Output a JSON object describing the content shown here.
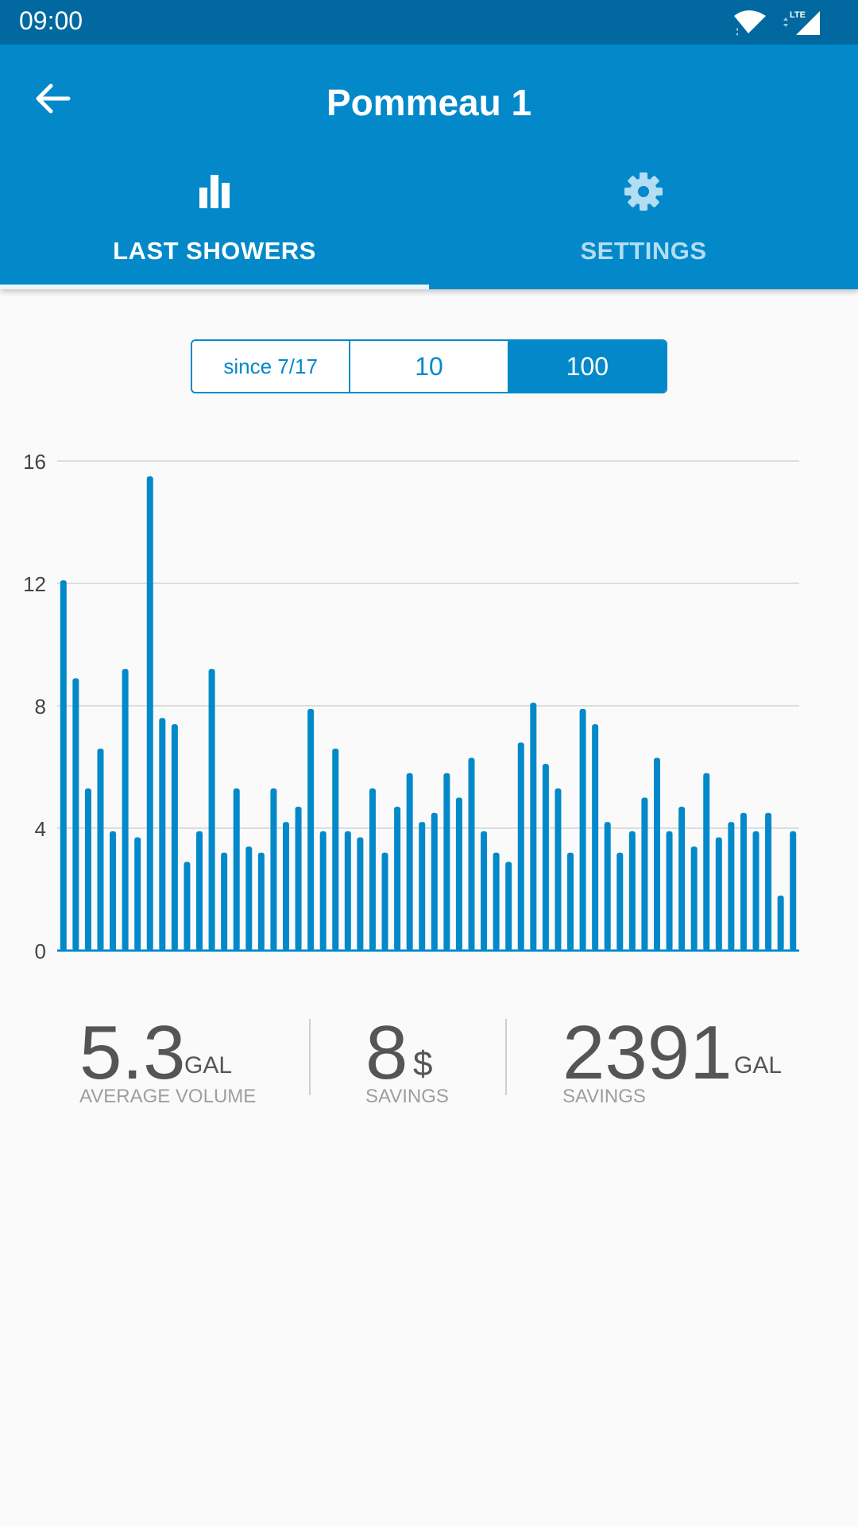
{
  "status_bar": {
    "time": "09:00",
    "network": "LTE"
  },
  "app_bar": {
    "title": "Pommeau 1"
  },
  "tabs": [
    {
      "label": "LAST SHOWERS",
      "icon": "bar-chart-icon",
      "active": true
    },
    {
      "label": "SETTINGS",
      "icon": "gear-icon",
      "active": false
    }
  ],
  "range_selector": {
    "options": [
      "since 7/17",
      "10",
      "100"
    ],
    "selected": "100"
  },
  "colors": {
    "accent": "#0389c9",
    "status_bar": "#01699f",
    "inactive_tab": "#b3ddf3"
  },
  "chart_data": {
    "type": "bar",
    "title": "",
    "xlabel": "",
    "ylabel": "",
    "ylim": [
      0,
      16
    ],
    "yticks": [
      "0",
      "4",
      "8",
      "12",
      "16"
    ],
    "grid": true,
    "bar_color": "#0389c9",
    "values": [
      12.1,
      8.9,
      5.3,
      6.6,
      3.9,
      9.2,
      3.7,
      15.5,
      7.6,
      7.4,
      2.9,
      3.9,
      9.2,
      3.2,
      5.3,
      3.4,
      3.2,
      5.3,
      4.2,
      4.7,
      7.9,
      3.9,
      6.6,
      3.9,
      3.7,
      5.3,
      3.2,
      4.7,
      5.8,
      4.2,
      4.5,
      5.8,
      5.0,
      6.3,
      3.9,
      3.2,
      2.9,
      6.8,
      8.1,
      6.1,
      5.3,
      3.2,
      7.9,
      7.4,
      4.2,
      3.2,
      3.9,
      5.0,
      6.3,
      3.9,
      4.7,
      3.4,
      5.8,
      3.7,
      4.2,
      4.5,
      3.9,
      4.5,
      1.8,
      3.9
    ]
  },
  "stats": [
    {
      "value": "5.3",
      "unit": "GAL",
      "label": "AVERAGE VOLUME"
    },
    {
      "value": "8",
      "unit": "$",
      "label": "SAVINGS"
    },
    {
      "value": "2391",
      "unit": "GAL",
      "label": "SAVINGS"
    }
  ]
}
